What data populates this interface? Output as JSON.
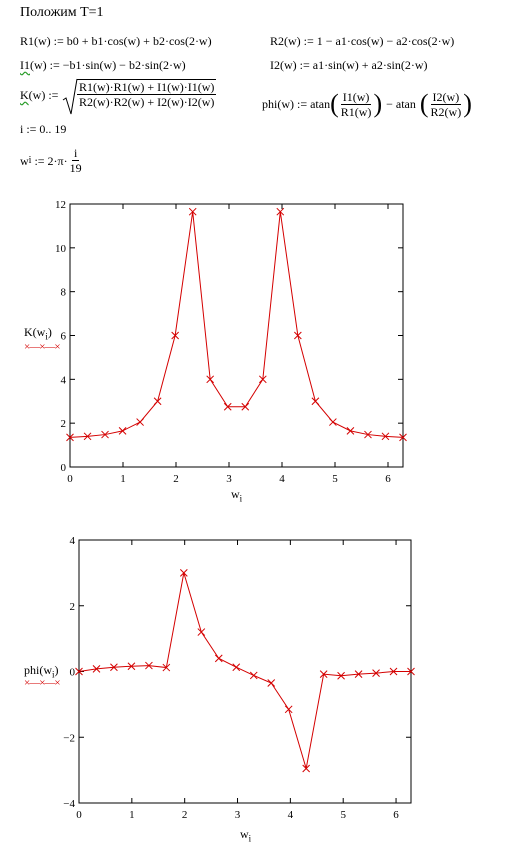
{
  "heading": "Положим T=1",
  "eq": {
    "r1": "R1(w) := b0 + b1·cos(w) + b2·cos(2·w)",
    "r2": "R2(w) := 1 − a1·cos(w) − a2·cos(2·w)",
    "i1_name": "I1",
    "i1_rest": "(w) := −b1·sin(w) − b2·sin(2·w)",
    "i2": "I2(w) := a1·sin(w) + a2·sin(2·w)",
    "k_name": "K",
    "k_rest": "(w) :=",
    "k_num": "R1(w)·R1(w) + I1(w)·I1(w)",
    "k_den": "R2(w)·R2(w) + I2(w)·I2(w)",
    "phi_lhs": "phi(w) := atan",
    "phi_num1": "I1(w)",
    "phi_den1": "R1(w)",
    "phi_mid": "− atan",
    "phi_num2": "I2(w)",
    "phi_den2": "R2(w)",
    "range": "i := 0.. 19",
    "w_lhs": "w",
    "w_sub": "i",
    "w_mid": ":= 2·π·",
    "w_num": "i",
    "w_den": "19"
  },
  "chart_data": [
    {
      "type": "line",
      "ylabel": "K(w",
      "ylabel_sub": "i",
      "ylabel_end": ")",
      "xlabel": "w",
      "xlabel_sub": "i",
      "xlim": [
        0,
        6.283
      ],
      "ylim": [
        0,
        12
      ],
      "xticks": [
        "0",
        "1",
        "2",
        "3",
        "4",
        "5",
        "6"
      ],
      "yticks": [
        "0",
        "2",
        "4",
        "6",
        "8",
        "10",
        "12"
      ],
      "series_color": "#d40000",
      "marker": "x",
      "x": [
        0,
        0.331,
        0.661,
        0.992,
        1.323,
        1.653,
        1.984,
        2.315,
        2.645,
        2.976,
        3.307,
        3.638,
        3.968,
        4.299,
        4.63,
        4.96,
        5.291,
        5.622,
        5.952,
        6.283
      ],
      "y": [
        1.35,
        1.4,
        1.48,
        1.65,
        2.05,
        3.0,
        6.0,
        11.65,
        4.0,
        2.75,
        2.75,
        4.0,
        11.65,
        6.0,
        3.0,
        2.05,
        1.65,
        1.48,
        1.4,
        1.35
      ]
    },
    {
      "type": "line",
      "ylabel": "phi(w",
      "ylabel_sub": "i",
      "ylabel_end": ")",
      "xlabel": "w",
      "xlabel_sub": "i",
      "xlim": [
        0,
        6.283
      ],
      "ylim": [
        -4,
        4
      ],
      "xticks": [
        "0",
        "1",
        "2",
        "3",
        "4",
        "5",
        "6"
      ],
      "yticks": [
        "−4",
        "−2",
        "0",
        "2",
        "4"
      ],
      "series_color": "#d40000",
      "marker": "x",
      "x": [
        0,
        0.331,
        0.661,
        0.992,
        1.323,
        1.653,
        1.984,
        2.315,
        2.645,
        2.976,
        3.307,
        3.638,
        3.968,
        4.299,
        4.63,
        4.96,
        5.291,
        5.622,
        5.952,
        6.283
      ],
      "y": [
        0.0,
        0.08,
        0.13,
        0.16,
        0.18,
        0.12,
        3.0,
        1.2,
        0.4,
        0.13,
        -0.12,
        -0.35,
        -1.15,
        -2.95,
        -0.08,
        -0.13,
        -0.08,
        -0.05,
        0.0,
        0.0
      ]
    }
  ]
}
